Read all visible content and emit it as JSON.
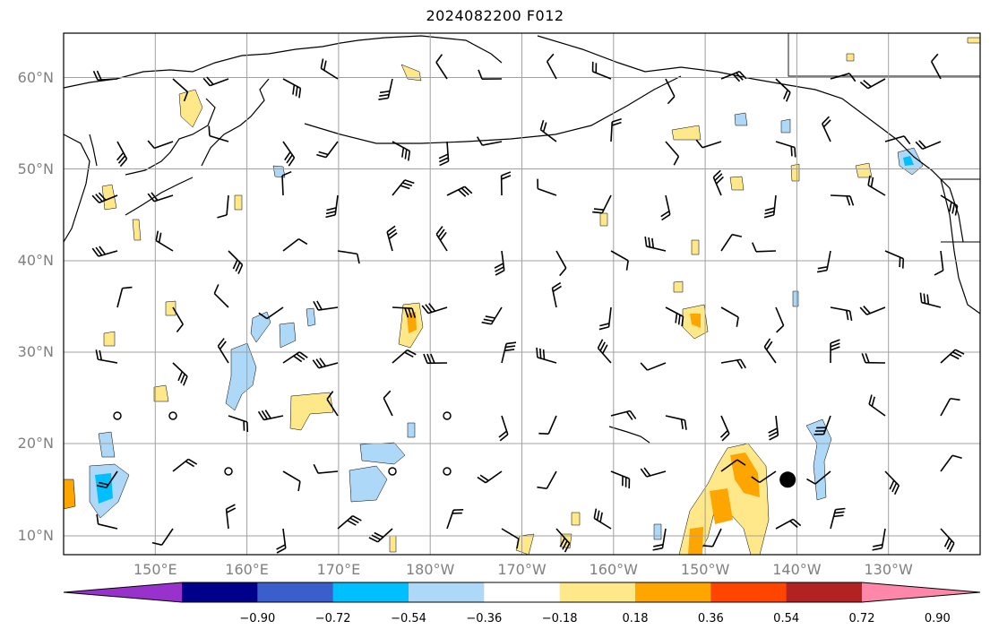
{
  "title": "2024082200 F012",
  "map": {
    "lat_labels": [
      {
        "lat": 60,
        "text": "60°N"
      },
      {
        "lat": 50,
        "text": "50°N"
      },
      {
        "lat": 40,
        "text": "40°N"
      },
      {
        "lat": 30,
        "text": "30°N"
      },
      {
        "lat": 20,
        "text": "20°N"
      },
      {
        "lat": 10,
        "text": "10°N"
      }
    ],
    "lon_labels": [
      {
        "lon": 150,
        "text": "150°E"
      },
      {
        "lon": 160,
        "text": "160°E"
      },
      {
        "lon": 170,
        "text": "170°E"
      },
      {
        "lon": 180,
        "text": "180°W"
      },
      {
        "lon": 190,
        "text": "170°W"
      },
      {
        "lon": 200,
        "text": "160°W"
      },
      {
        "lon": 210,
        "text": "150°W"
      },
      {
        "lon": 220,
        "text": "140°W"
      },
      {
        "lon": 230,
        "text": "130°W"
      }
    ],
    "extent": {
      "lon_min": 140,
      "lon_max": 240,
      "lat_min": 8,
      "lat_max": 65
    },
    "storm_marker": {
      "lon": 219,
      "lat": 16.2
    }
  },
  "colorbar": {
    "tick_labels": [
      "−0.90",
      "−0.72",
      "−0.54",
      "−0.36",
      "−0.18",
      "0.18",
      "0.36",
      "0.54",
      "0.72",
      "0.90"
    ],
    "colors": [
      "#9932cc",
      "#00008b",
      "#3a5fcd",
      "#00bfff",
      "#add8f7",
      "#ffffff",
      "#ffe88a",
      "#ffa500",
      "#ff4500",
      "#b22222",
      "#ff88aa"
    ]
  }
}
